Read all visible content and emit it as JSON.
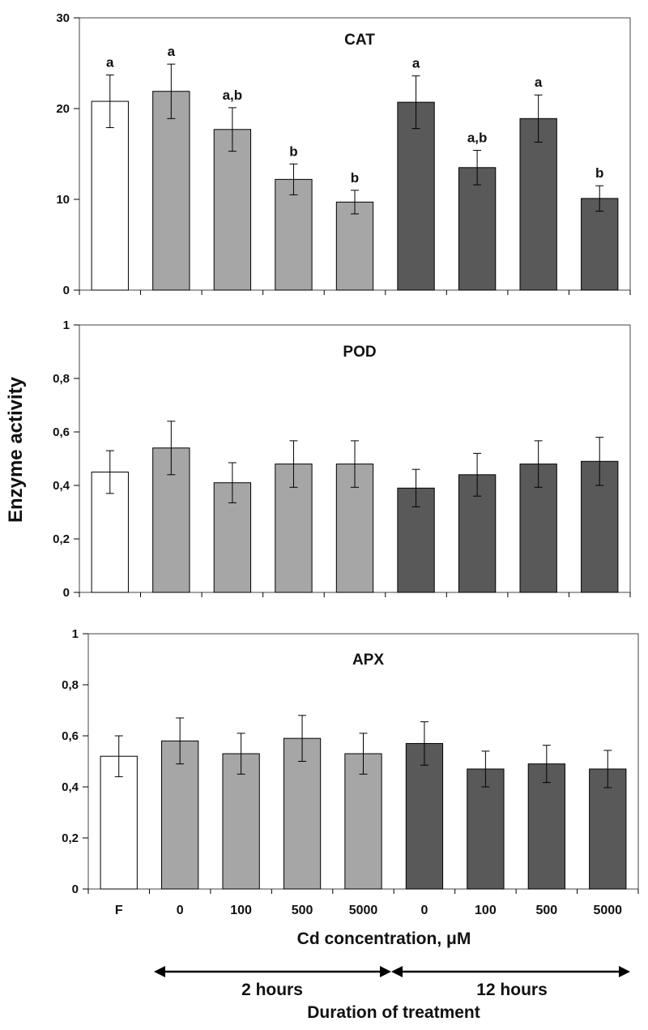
{
  "ylabel": "Enzyme activity",
  "xlabel": "Cd concentration, μM",
  "duration_label": "Duration of treatment",
  "groups": [
    {
      "label": "2 hours",
      "from_category": 1,
      "to_category": 4
    },
    {
      "label": "12 hours",
      "from_category": 5,
      "to_category": 8
    }
  ],
  "colors": {
    "control": "#ffffff",
    "two_hours": "#a6a6a6",
    "twelve_hours": "#595959",
    "stroke": "#000000"
  },
  "chart_data": [
    {
      "type": "bar",
      "title": "CAT",
      "categories": [
        "F",
        "0",
        "100",
        "500",
        "5000",
        "0",
        "100",
        "500",
        "5000"
      ],
      "values": [
        20.8,
        21.9,
        17.7,
        12.2,
        9.7,
        20.7,
        13.5,
        18.9,
        10.1
      ],
      "errors": [
        2.9,
        3.0,
        2.4,
        1.7,
        1.3,
        2.9,
        1.9,
        2.6,
        1.4
      ],
      "significance": [
        "a",
        "a",
        "a,b",
        "b",
        "b",
        "a",
        "a,b",
        "a",
        "b"
      ],
      "ylim": [
        0,
        30
      ],
      "yticks": [
        0,
        10,
        20,
        30
      ],
      "ytick_labels": [
        "0",
        "10",
        "20",
        "30"
      ],
      "grid": false
    },
    {
      "type": "bar",
      "title": "POD",
      "categories": [
        "F",
        "0",
        "100",
        "500",
        "5000",
        "0",
        "100",
        "500",
        "5000"
      ],
      "values": [
        0.45,
        0.54,
        0.41,
        0.48,
        0.48,
        0.39,
        0.44,
        0.48,
        0.49
      ],
      "errors": [
        0.08,
        0.1,
        0.075,
        0.087,
        0.087,
        0.07,
        0.08,
        0.087,
        0.09
      ],
      "ylim": [
        0,
        1
      ],
      "yticks": [
        0,
        0.2,
        0.4,
        0.6,
        0.8,
        1
      ],
      "ytick_labels": [
        "0",
        "0,2",
        "0,4",
        "0,6",
        "0,8",
        "1"
      ],
      "grid": false
    },
    {
      "type": "bar",
      "title": "APX",
      "categories": [
        "F",
        "0",
        "100",
        "500",
        "5000",
        "0",
        "100",
        "500",
        "5000"
      ],
      "values": [
        0.52,
        0.58,
        0.53,
        0.59,
        0.53,
        0.57,
        0.47,
        0.49,
        0.47
      ],
      "errors": [
        0.08,
        0.09,
        0.08,
        0.09,
        0.08,
        0.085,
        0.07,
        0.073,
        0.073
      ],
      "ylim": [
        0,
        1
      ],
      "yticks": [
        0,
        0.2,
        0.4,
        0.6,
        0.8,
        1
      ],
      "ytick_labels": [
        "0",
        "0,2",
        "0,4",
        "0,6",
        "0,8",
        "1"
      ],
      "grid": false
    }
  ]
}
